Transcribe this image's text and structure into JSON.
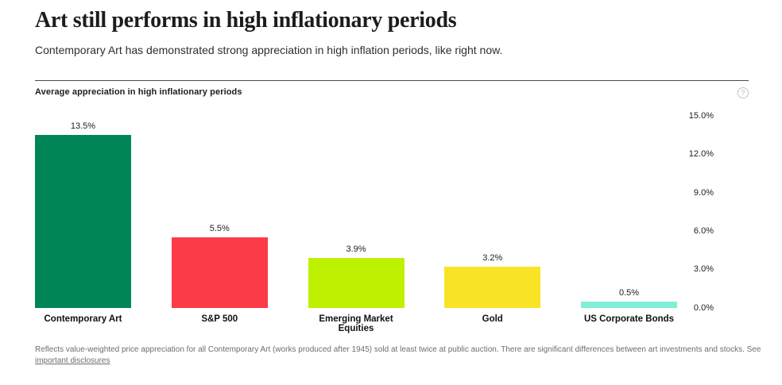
{
  "page": {
    "title": "Art still performs in high inflationary periods",
    "subtitle": "Contemporary Art has demonstrated strong appreciation in high inflation periods, like right now."
  },
  "chart": {
    "label": "Average appreciation in high inflationary periods",
    "help_icon_glyph": "?"
  },
  "chart_data": {
    "type": "bar",
    "title": "Average appreciation in high inflationary periods",
    "categories": [
      "Contemporary Art",
      "S&P 500",
      "Emerging Market Equities",
      "Gold",
      "US Corporate Bonds"
    ],
    "values": [
      13.5,
      5.5,
      3.9,
      3.2,
      0.5
    ],
    "value_labels": [
      "13.5%",
      "5.5%",
      "3.9%",
      "3.2%",
      "0.5%"
    ],
    "colors": [
      "#008656",
      "#FC3B49",
      "#BEF100",
      "#F9E327",
      "#7FEFD8"
    ],
    "xlabel": "",
    "ylabel": "",
    "ylim": [
      0,
      15
    ],
    "ytick_values": [
      0,
      3,
      6,
      9,
      12,
      15
    ],
    "ytick_labels": [
      "0.0%",
      "3.0%",
      "6.0%",
      "9.0%",
      "12.0%",
      "15.0%"
    ],
    "grid": false,
    "legend": false,
    "yaxis_position": "right"
  },
  "footnote": {
    "text": "Reflects value-weighted price appreciation for all Contemporary Art (works produced after 1945) sold at least twice at public auction. There are significant differences between art investments and stocks. See",
    "link_label": "important disclosures"
  }
}
